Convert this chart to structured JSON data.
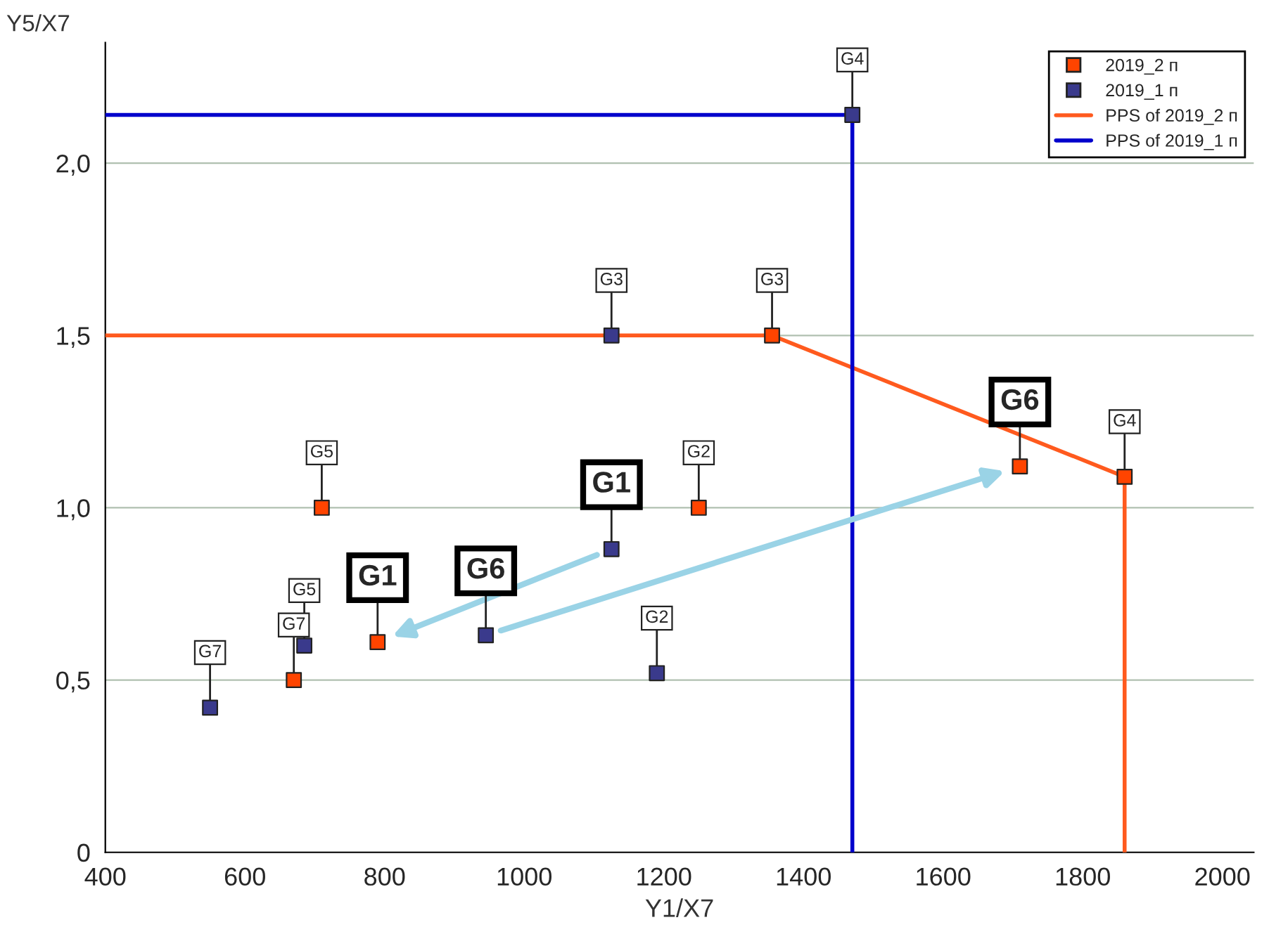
{
  "chart_data": {
    "type": "scatter",
    "xlabel": "Y1/X7",
    "ylabel": "Y5/X7",
    "xlim": [
      400,
      2045
    ],
    "ylim": [
      0,
      2.35
    ],
    "xticks": [
      400,
      600,
      800,
      1000,
      1200,
      1400,
      1600,
      1800,
      2000
    ],
    "yticks": [
      0,
      {
        "value": 0.5,
        "label": "0,5"
      },
      {
        "value": 1.0,
        "label": "1,0"
      },
      {
        "value": 1.5,
        "label": "1,5"
      },
      {
        "value": 2.0,
        "label": "2,0"
      }
    ],
    "grid": "y",
    "legend": "top right",
    "series": [
      {
        "name": "2019_2 п",
        "marker": "square",
        "color": "#ff4400",
        "x": [
          1355,
          1860,
          1710,
          1250,
          710,
          790,
          670
        ],
        "values": [
          1.5,
          1.09,
          1.12,
          1.0,
          1.0,
          0.61,
          0.5
        ],
        "value_labels": [
          "G3",
          "G4",
          null,
          "G2",
          "G5",
          null,
          "G7"
        ]
      },
      {
        "name": "2019_1 п",
        "marker": "square",
        "color": "#3a3a8c",
        "x": [
          1470,
          1125,
          1125,
          945,
          1190,
          685,
          550
        ],
        "values": [
          2.14,
          1.5,
          0.88,
          0.63,
          0.52,
          0.6,
          0.42
        ],
        "value_labels": [
          "G4",
          "G3",
          null,
          null,
          "G2",
          "G5",
          "G7"
        ]
      },
      {
        "name": "PPS of 2019_2 п",
        "type": "line",
        "color": "#ff5a1e",
        "x": [
          400,
          1355,
          1860,
          1860
        ],
        "values": [
          1.5,
          1.5,
          1.09,
          0
        ]
      },
      {
        "name": "PPS of 2019_1 п",
        "type": "line",
        "color": "#0000cc",
        "x": [
          400,
          1470,
          1470
        ],
        "values": [
          2.14,
          2.14,
          0
        ]
      }
    ],
    "annotations": [
      {
        "text": "G1",
        "x": 1125,
        "y": 0.88
      },
      {
        "text": "G1",
        "x": 790,
        "y": 0.61
      },
      {
        "text": "G6",
        "x": 945,
        "y": 0.63
      },
      {
        "text": "G6",
        "x": 1710,
        "y": 1.12
      }
    ]
  }
}
